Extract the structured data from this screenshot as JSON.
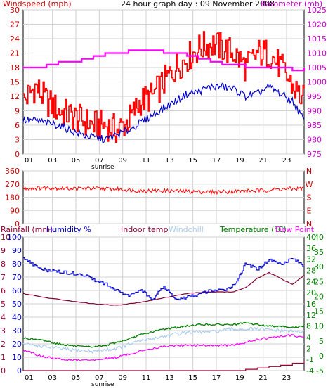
{
  "chart_data": [
    {
      "type": "line",
      "title": "24 hour graph day : 09 November 2008",
      "left_axis_label": "Windspeed (mph)",
      "right_axis_label": "Barometer (mb)",
      "x_tick_labels": [
        "01",
        "03",
        "05",
        "07",
        "09",
        "11",
        "13",
        "15",
        "17",
        "19",
        "21",
        "23"
      ],
      "x_range_hours": [
        0,
        24
      ],
      "sunrise_label": "sunrise",
      "left_ylim": [
        0,
        30
      ],
      "left_ticks": [
        0,
        3,
        6,
        9,
        12,
        15,
        18,
        21,
        24,
        27,
        30
      ],
      "right_ylim": [
        975,
        1025
      ],
      "right_ticks": [
        975,
        980,
        985,
        990,
        995,
        1000,
        1005,
        1010,
        1015,
        1020,
        1025
      ],
      "grid": true,
      "colors": {
        "gust": "#ff0000",
        "average": "#0000cc",
        "barometer": "#ff00ff"
      },
      "series": [
        {
          "label": "gust",
          "axis": "left",
          "x": [
            0,
            1,
            2,
            3,
            4,
            5,
            6,
            7,
            8,
            9,
            10,
            11,
            12,
            13,
            14,
            15,
            16,
            17,
            18,
            19,
            20,
            21,
            22,
            23,
            24
          ],
          "values": [
            11,
            14,
            11,
            9,
            8,
            7,
            6,
            6,
            5,
            7,
            11,
            12,
            15,
            18,
            20,
            22,
            23,
            22,
            21,
            18,
            21,
            21,
            18,
            14,
            11
          ]
        },
        {
          "label": "average",
          "axis": "left",
          "x": [
            0,
            1,
            2,
            3,
            4,
            5,
            6,
            7,
            8,
            9,
            10,
            11,
            12,
            13,
            14,
            15,
            16,
            17,
            18,
            19,
            20,
            21,
            22,
            23,
            24
          ],
          "values": [
            7,
            7,
            6.5,
            6,
            5,
            4,
            3.5,
            3,
            4,
            5,
            6.5,
            8,
            9.5,
            11,
            12.5,
            13,
            14,
            14,
            13.5,
            12,
            12.5,
            14,
            12.5,
            11,
            7
          ]
        },
        {
          "label": "barometer",
          "axis": "right",
          "x": [
            0,
            1,
            2,
            3,
            4,
            5,
            6,
            7,
            8,
            9,
            10,
            11,
            12,
            13,
            14,
            15,
            16,
            17,
            18,
            19,
            20,
            21,
            22,
            23,
            24
          ],
          "values": [
            1005,
            1005,
            1006,
            1007,
            1007,
            1008,
            1009,
            1010,
            1010,
            1011,
            1011,
            1011,
            1010,
            1010,
            1009,
            1008,
            1007,
            1006,
            1006,
            1005,
            1005,
            1005,
            1005,
            1004,
            1005
          ]
        }
      ]
    },
    {
      "type": "line",
      "ylabel_right": "N W S E N",
      "right_axis_letters": [
        "N",
        "W",
        "S",
        "E",
        "N"
      ],
      "x_range_hours": [
        0,
        24
      ],
      "ylim": [
        0,
        360
      ],
      "ticks": [
        0,
        90,
        180,
        270,
        360
      ],
      "grid": true,
      "colors": {
        "direction": "#ff0000"
      },
      "series": [
        {
          "label": "wind direction",
          "x": [
            0,
            2,
            4,
            6,
            8,
            10,
            12,
            14,
            16,
            18,
            20,
            22,
            24
          ],
          "values": [
            240,
            245,
            240,
            240,
            235,
            225,
            225,
            220,
            215,
            220,
            225,
            235,
            240
          ]
        }
      ]
    },
    {
      "type": "line",
      "header_labels": {
        "rainfall": "Rainfall (mm)",
        "humidity": "Humidity %",
        "indoor": "Indoor temp",
        "windchill": "Windchill",
        "temperature": "Temperature (°C)",
        "dewpoint": "Dew Point"
      },
      "x_tick_labels": [
        "01",
        "03",
        "05",
        "07",
        "09",
        "11",
        "13",
        "15",
        "17",
        "19",
        "21",
        "23"
      ],
      "x_range_hours": [
        0,
        24
      ],
      "sunrise_label": "sunrise",
      "left_rain_ticks": [
        0,
        1,
        2,
        3,
        4,
        5,
        6,
        7,
        8,
        9,
        10
      ],
      "left_humidity_ticks": [
        0,
        10,
        20,
        30,
        40,
        50,
        60,
        70,
        80,
        90,
        100
      ],
      "left_humidity_labels": [
        "0",
        "10",
        "20",
        "30",
        "40",
        "50",
        "60",
        "70",
        "80",
        "90",
        "100"
      ],
      "left_rain_labels": [
        "0",
        "1",
        "2",
        "3",
        "4",
        "5",
        "6",
        "7",
        "8",
        "9",
        "10"
      ],
      "right_outer_labels": [
        "-5",
        "0",
        "5",
        "10",
        "15",
        "20",
        "25",
        "30",
        "35",
        "40"
      ],
      "right_inner_labels": [
        "-4",
        "-1",
        "2",
        "4",
        "8",
        "12",
        "16",
        "20",
        "24",
        "28",
        "32",
        "36",
        "40"
      ],
      "temp_ylim": [
        -5,
        40
      ],
      "humidity_ylim": [
        0,
        100
      ],
      "grid": true,
      "colors": {
        "rainfall": "#990033",
        "humidity": "#0000cc",
        "indoor": "#800030",
        "windchill": "#aaccee",
        "temperature": "#008000",
        "dewpoint": "#ff00ff"
      },
      "series": [
        {
          "label": "humidity",
          "axis": "humidity",
          "x": [
            0,
            1,
            2,
            3,
            4,
            5,
            6,
            7,
            8,
            9,
            10,
            11,
            12,
            13,
            14,
            15,
            16,
            17,
            18,
            19,
            20,
            21,
            22,
            23,
            24
          ],
          "values": [
            85,
            78,
            75,
            74,
            73,
            72,
            68,
            65,
            60,
            56,
            61,
            53,
            63,
            53,
            55,
            57,
            60,
            60,
            64,
            80,
            76,
            83,
            80,
            84,
            78
          ]
        },
        {
          "label": "indoor temp",
          "axis": "temp",
          "x": [
            0,
            2,
            4,
            6,
            8,
            10,
            12,
            14,
            16,
            18,
            19,
            20,
            21,
            22,
            23,
            24
          ],
          "values": [
            21,
            19.5,
            18.5,
            17.5,
            17,
            18,
            19.5,
            21,
            21.5,
            21.5,
            23,
            26,
            28,
            26,
            24,
            27
          ]
        },
        {
          "label": "temperature",
          "axis": "temp",
          "x": [
            0,
            1,
            2,
            3,
            4,
            5,
            6,
            7,
            8,
            9,
            10,
            11,
            12,
            13,
            14,
            15,
            16,
            17,
            18,
            19,
            20,
            21,
            22,
            23,
            24
          ],
          "values": [
            6,
            5.5,
            5,
            4,
            3.5,
            3,
            3,
            3.5,
            4.5,
            5.5,
            7,
            8,
            9,
            9.5,
            10,
            10.5,
            10.5,
            10.5,
            10.5,
            11,
            10.5,
            10,
            10,
            9.5,
            10
          ]
        },
        {
          "label": "windchill",
          "axis": "temp",
          "x": [
            0,
            2,
            4,
            6,
            8,
            10,
            12,
            14,
            16,
            18,
            19,
            20,
            22,
            24
          ],
          "values": [
            4,
            3,
            2,
            1.5,
            2.5,
            5,
            6.5,
            8,
            8,
            9,
            9,
            9,
            8.5,
            8
          ]
        },
        {
          "label": "dew point",
          "axis": "temp",
          "x": [
            0,
            1,
            2,
            3,
            4,
            5,
            6,
            7,
            8,
            9,
            10,
            11,
            12,
            13,
            14,
            15,
            16,
            17,
            18,
            19,
            20,
            21,
            22,
            23,
            24
          ],
          "values": [
            2,
            0.5,
            -0.5,
            -1,
            -1.5,
            -1.5,
            -1.5,
            -1,
            -0.5,
            0.5,
            1.5,
            2.5,
            3,
            3.5,
            3.5,
            3.5,
            3.5,
            3.5,
            3.5,
            4.5,
            5.5,
            6,
            6.5,
            7,
            6
          ]
        },
        {
          "label": "rainfall",
          "axis": "rain",
          "x": [
            0,
            18,
            19,
            20,
            21,
            22,
            23,
            24
          ],
          "values": [
            0,
            0,
            0.1,
            0.2,
            0.3,
            0.4,
            0.55,
            0.7
          ]
        }
      ]
    }
  ]
}
